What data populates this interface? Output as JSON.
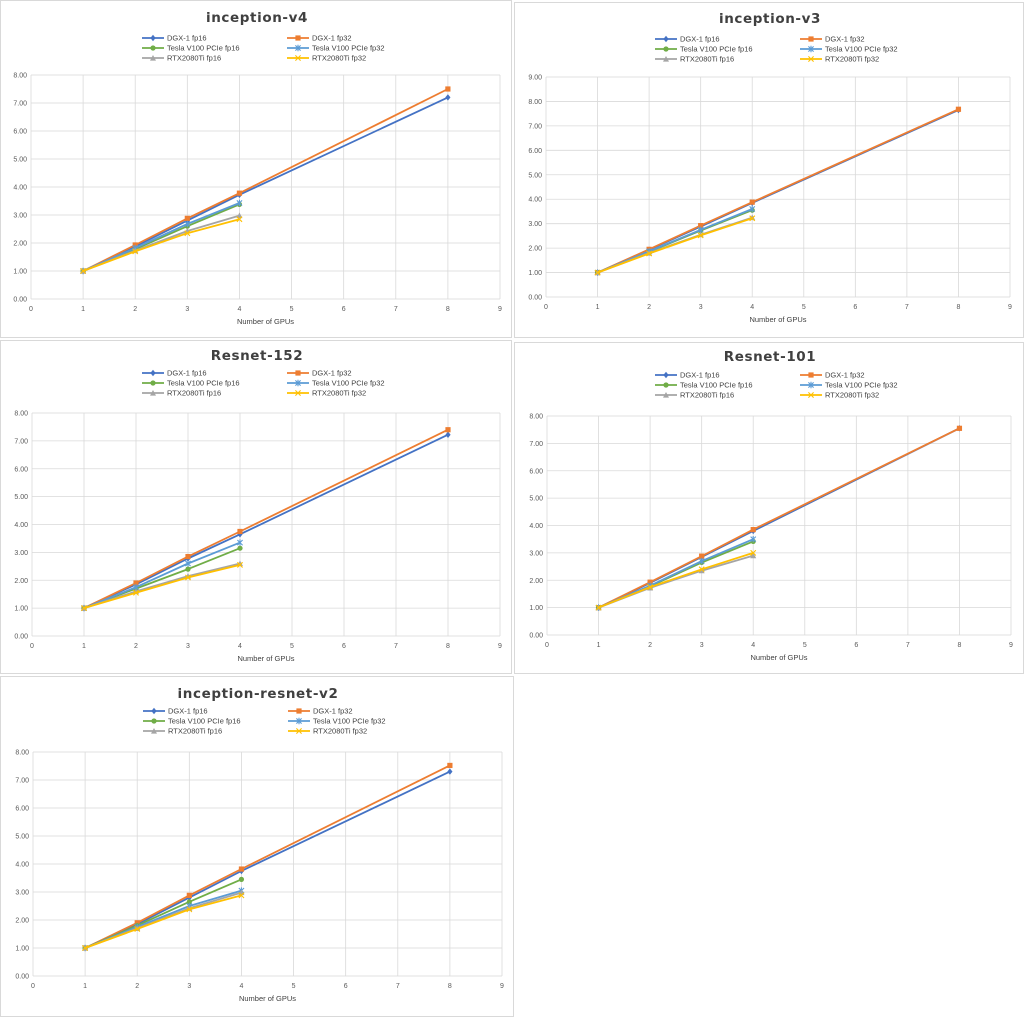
{
  "colors": {
    "dgx_fp16": "#4472c4",
    "dgx_fp32": "#ed7d31",
    "tesla_fp16": "#70ad47",
    "tesla_fp32": "#5b9bd5",
    "rtx_fp16": "#a5a5a5",
    "rtx_fp32": "#ffc000",
    "grid": "#d9d9d9",
    "panel_border": "#d9d9d9"
  },
  "chart_data": [
    {
      "type": "line",
      "title": "inception-v4",
      "xlabel": "Number of GPUs",
      "ylabel": "",
      "xlim": [
        0,
        9
      ],
      "ylim": [
        0,
        8
      ],
      "x_ticks": [
        "0",
        "1",
        "2",
        "3",
        "4",
        "5",
        "6",
        "7",
        "8",
        "9"
      ],
      "y_ticks": [
        "0.00",
        "1.00",
        "2.00",
        "3.00",
        "4.00",
        "5.00",
        "6.00",
        "7.00",
        "8.00"
      ],
      "grid": true,
      "legend_position": "top",
      "series": [
        {
          "name": "DGX-1 fp16",
          "marker": "diamond",
          "x": [
            1,
            2,
            3,
            4,
            8
          ],
          "y": [
            1.0,
            1.88,
            2.8,
            3.72,
            7.2
          ]
        },
        {
          "name": "DGX-1 fp32",
          "marker": "square",
          "x": [
            1,
            2,
            3,
            4,
            8
          ],
          "y": [
            1.0,
            1.93,
            2.88,
            3.78,
            7.5
          ]
        },
        {
          "name": "Tesla V100 PCIe fp16",
          "marker": "circle",
          "x": [
            1,
            2,
            3,
            4
          ],
          "y": [
            1.0,
            1.78,
            2.6,
            3.38
          ]
        },
        {
          "name": "Tesla V100 PCIe fp32",
          "marker": "star",
          "x": [
            1,
            2,
            3,
            4
          ],
          "y": [
            1.0,
            1.82,
            2.68,
            3.43
          ]
        },
        {
          "name": "RTX2080Ti fp16",
          "marker": "triangle",
          "x": [
            1,
            2,
            3,
            4
          ],
          "y": [
            1.0,
            1.73,
            2.43,
            2.98
          ]
        },
        {
          "name": "RTX2080Ti fp32",
          "marker": "cross",
          "x": [
            1,
            2,
            3,
            4
          ],
          "y": [
            1.0,
            1.7,
            2.35,
            2.85
          ]
        }
      ]
    },
    {
      "type": "line",
      "title": "inception-v3",
      "xlabel": "Number of GPUs",
      "ylabel": "",
      "xlim": [
        0,
        9
      ],
      "ylim": [
        0,
        9
      ],
      "x_ticks": [
        "0",
        "1",
        "2",
        "3",
        "4",
        "5",
        "6",
        "7",
        "8",
        "9"
      ],
      "y_ticks": [
        "0.00",
        "1.00",
        "2.00",
        "3.00",
        "4.00",
        "5.00",
        "6.00",
        "7.00",
        "8.00",
        "9.00"
      ],
      "grid": true,
      "legend_position": "top",
      "series": [
        {
          "name": "DGX-1 fp16",
          "marker": "diamond",
          "x": [
            1,
            2,
            3,
            4,
            8
          ],
          "y": [
            1.0,
            1.93,
            2.88,
            3.85,
            7.65
          ]
        },
        {
          "name": "DGX-1 fp32",
          "marker": "square",
          "x": [
            1,
            2,
            3,
            4,
            8
          ],
          "y": [
            1.0,
            1.95,
            2.92,
            3.88,
            7.68
          ]
        },
        {
          "name": "Tesla V100 PCIe fp16",
          "marker": "circle",
          "x": [
            1,
            2,
            3,
            4
          ],
          "y": [
            1.0,
            1.85,
            2.72,
            3.55
          ]
        },
        {
          "name": "Tesla V100 PCIe fp32",
          "marker": "star",
          "x": [
            1,
            2,
            3,
            4
          ],
          "y": [
            1.0,
            1.87,
            2.75,
            3.6
          ]
        },
        {
          "name": "RTX2080Ti fp16",
          "marker": "triangle",
          "x": [
            1,
            2,
            3,
            4
          ],
          "y": [
            1.0,
            1.8,
            2.55,
            3.25
          ]
        },
        {
          "name": "RTX2080Ti fp32",
          "marker": "cross",
          "x": [
            1,
            2,
            3,
            4
          ],
          "y": [
            1.0,
            1.78,
            2.52,
            3.22
          ]
        }
      ]
    },
    {
      "type": "line",
      "title": "Resnet-152",
      "xlabel": "Number of GPUs",
      "ylabel": "",
      "xlim": [
        0,
        9
      ],
      "ylim": [
        0,
        8
      ],
      "x_ticks": [
        "0",
        "1",
        "2",
        "3",
        "4",
        "5",
        "6",
        "7",
        "8",
        "9"
      ],
      "y_ticks": [
        "0.00",
        "1.00",
        "2.00",
        "3.00",
        "4.00",
        "5.00",
        "6.00",
        "7.00",
        "8.00"
      ],
      "grid": true,
      "legend_position": "top",
      "series": [
        {
          "name": "DGX-1 fp16",
          "marker": "diamond",
          "x": [
            1,
            2,
            3,
            4,
            8
          ],
          "y": [
            1.0,
            1.85,
            2.78,
            3.65,
            7.22
          ]
        },
        {
          "name": "DGX-1 fp32",
          "marker": "square",
          "x": [
            1,
            2,
            3,
            4,
            8
          ],
          "y": [
            1.0,
            1.9,
            2.85,
            3.75,
            7.4
          ]
        },
        {
          "name": "Tesla V100 PCIe fp16",
          "marker": "circle",
          "x": [
            1,
            2,
            3,
            4
          ],
          "y": [
            1.0,
            1.7,
            2.4,
            3.15
          ]
        },
        {
          "name": "Tesla V100 PCIe fp32",
          "marker": "star",
          "x": [
            1,
            2,
            3,
            4
          ],
          "y": [
            1.0,
            1.75,
            2.6,
            3.35
          ]
        },
        {
          "name": "RTX2080Ti fp16",
          "marker": "triangle",
          "x": [
            1,
            2,
            3,
            4
          ],
          "y": [
            1.0,
            1.6,
            2.15,
            2.6
          ]
        },
        {
          "name": "RTX2080Ti fp32",
          "marker": "cross",
          "x": [
            1,
            2,
            3,
            4
          ],
          "y": [
            1.0,
            1.55,
            2.1,
            2.55
          ]
        }
      ]
    },
    {
      "type": "line",
      "title": "Resnet-101",
      "xlabel": "Number of GPUs",
      "ylabel": "",
      "xlim": [
        0,
        9
      ],
      "ylim": [
        0,
        8
      ],
      "x_ticks": [
        "0",
        "1",
        "2",
        "3",
        "4",
        "5",
        "6",
        "7",
        "8",
        "9"
      ],
      "y_ticks": [
        "0.00",
        "1.00",
        "2.00",
        "3.00",
        "4.00",
        "5.00",
        "6.00",
        "7.00",
        "8.00"
      ],
      "grid": true,
      "legend_position": "top",
      "series": [
        {
          "name": "DGX-1 fp16",
          "marker": "diamond",
          "x": [
            1,
            2,
            3,
            4,
            8
          ],
          "y": [
            1.0,
            1.9,
            2.85,
            3.8,
            7.55
          ]
        },
        {
          "name": "DGX-1 fp32",
          "marker": "square",
          "x": [
            1,
            2,
            3,
            4,
            8
          ],
          "y": [
            1.0,
            1.93,
            2.88,
            3.85,
            7.55
          ]
        },
        {
          "name": "Tesla V100 PCIe fp16",
          "marker": "circle",
          "x": [
            1,
            2,
            3,
            4
          ],
          "y": [
            1.0,
            1.78,
            2.65,
            3.42
          ]
        },
        {
          "name": "Tesla V100 PCIe fp32",
          "marker": "star",
          "x": [
            1,
            2,
            3,
            4
          ],
          "y": [
            1.0,
            1.8,
            2.7,
            3.5
          ]
        },
        {
          "name": "RTX2080Ti fp16",
          "marker": "triangle",
          "x": [
            1,
            2,
            3,
            4
          ],
          "y": [
            1.0,
            1.72,
            2.35,
            2.9
          ]
        },
        {
          "name": "RTX2080Ti fp32",
          "marker": "cross",
          "x": [
            1,
            2,
            3,
            4
          ],
          "y": [
            1.0,
            1.75,
            2.4,
            3.0
          ]
        }
      ]
    },
    {
      "type": "line",
      "title": "inception-resnet-v2",
      "xlabel": "Number of GPUs",
      "ylabel": "",
      "xlim": [
        0,
        9
      ],
      "ylim": [
        0,
        8
      ],
      "x_ticks": [
        "0",
        "1",
        "2",
        "3",
        "4",
        "5",
        "6",
        "7",
        "8",
        "9"
      ],
      "y_ticks": [
        "0.00",
        "1.00",
        "2.00",
        "3.00",
        "4.00",
        "5.00",
        "6.00",
        "7.00",
        "8.00"
      ],
      "grid": true,
      "legend_position": "top",
      "series": [
        {
          "name": "DGX-1 fp16",
          "marker": "diamond",
          "x": [
            1,
            2,
            3,
            4,
            8
          ],
          "y": [
            1.0,
            1.85,
            2.8,
            3.75,
            7.3
          ]
        },
        {
          "name": "DGX-1 fp32",
          "marker": "square",
          "x": [
            1,
            2,
            3,
            4,
            8
          ],
          "y": [
            1.0,
            1.9,
            2.88,
            3.82,
            7.52
          ]
        },
        {
          "name": "Tesla V100 PCIe fp16",
          "marker": "circle",
          "x": [
            1,
            2,
            3,
            4
          ],
          "y": [
            1.0,
            1.8,
            2.65,
            3.45
          ]
        },
        {
          "name": "Tesla V100 PCIe fp32",
          "marker": "star",
          "x": [
            1,
            2,
            3,
            4
          ],
          "y": [
            1.0,
            1.75,
            2.5,
            3.05
          ]
        },
        {
          "name": "RTX2080Ti fp16",
          "marker": "triangle",
          "x": [
            1,
            2,
            3,
            4
          ],
          "y": [
            1.0,
            1.7,
            2.42,
            2.98
          ]
        },
        {
          "name": "RTX2080Ti fp32",
          "marker": "cross",
          "x": [
            1,
            2,
            3,
            4
          ],
          "y": [
            1.0,
            1.68,
            2.38,
            2.88
          ]
        }
      ]
    }
  ]
}
